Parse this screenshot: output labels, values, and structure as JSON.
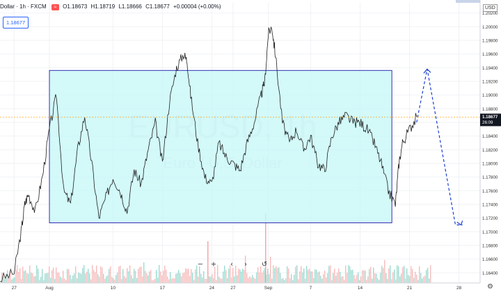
{
  "legend": {
    "symbol": "Dollar · 1h · FXCM",
    "o": "O1.18673",
    "h": "H1.18719",
    "l": "L1.18666",
    "c": "C1.18677",
    "chg": "+0.00004 (+0.00%)"
  },
  "price_badge": "1.18677",
  "currency": "USD",
  "watermark": {
    "title": "EURUSD, 1h",
    "subtitle": "Euro / U.S. Dollar"
  },
  "current_price_label": "1.18677",
  "countdown_label": "26:09",
  "nav": {
    "zoom_out": "−",
    "zoom_in": "+",
    "left": "‹",
    "right": "›",
    "reset": "↺"
  },
  "colors": {
    "rect_fill": "#c8f7f8",
    "rect_stroke": "#3030b0",
    "arrow": "#1a3fcf",
    "up_volume": "#7fcfc2",
    "down_volume": "#f4a7a7",
    "price_line": "#ff9900"
  },
  "chart_data": {
    "type": "line",
    "title": "",
    "xlabel": "",
    "ylabel": "",
    "ylim": [
      1.1625,
      1.2035
    ],
    "yticks": [
      "1.20200",
      "1.20000",
      "1.19800",
      "1.19600",
      "1.19400",
      "1.19200",
      "1.19000",
      "1.18800",
      "1.18600",
      "1.18400",
      "1.18200",
      "1.18000",
      "1.17800",
      "1.17600",
      "1.17400",
      "1.17200",
      "1.17000",
      "1.16800",
      "1.16600",
      "1.16400"
    ],
    "ytick_values": [
      1.202,
      1.2,
      1.198,
      1.196,
      1.194,
      1.192,
      1.19,
      1.188,
      1.186,
      1.184,
      1.182,
      1.18,
      1.178,
      1.176,
      1.174,
      1.172,
      1.17,
      1.168,
      1.166,
      1.164
    ],
    "xticks": [
      "27",
      "Aug",
      "10",
      "17",
      "24",
      "27",
      "Sep",
      "7",
      "14",
      "21",
      "28"
    ],
    "xtick_days": [
      -5,
      0,
      9,
      16,
      23,
      26,
      31,
      37,
      44,
      51,
      58
    ],
    "xlim_days": [
      -7,
      61
    ],
    "series": [
      {
        "x": [
          -7,
          -5,
          -4,
          -3.5,
          -3,
          -2,
          -1,
          0,
          1,
          2,
          3,
          4,
          5,
          6,
          7,
          8,
          9,
          10,
          11,
          12,
          13,
          14,
          15,
          16,
          17,
          18,
          19,
          19.5,
          20,
          21,
          22,
          23,
          24,
          25,
          26,
          27,
          28,
          29,
          30,
          30.5,
          31,
          31.5,
          32,
          33,
          34,
          35,
          36,
          37,
          38,
          39,
          40,
          41,
          42,
          43,
          44,
          45,
          46,
          47,
          48,
          49,
          49.5,
          50,
          51,
          52
        ],
        "y": [
          1.163,
          1.164,
          1.17,
          1.174,
          1.1755,
          1.173,
          1.178,
          1.185,
          1.19,
          1.176,
          1.174,
          1.182,
          1.187,
          1.18,
          1.172,
          1.175,
          1.178,
          1.176,
          1.173,
          1.179,
          1.177,
          1.182,
          1.186,
          1.18,
          1.189,
          1.194,
          1.196,
          1.195,
          1.19,
          1.183,
          1.178,
          1.177,
          1.183,
          1.181,
          1.18,
          1.179,
          1.183,
          1.186,
          1.19,
          1.192,
          1.199,
          1.2,
          1.196,
          1.186,
          1.183,
          1.185,
          1.182,
          1.184,
          1.18,
          1.179,
          1.184,
          1.186,
          1.187,
          1.186,
          1.186,
          1.185,
          1.183,
          1.18,
          1.176,
          1.174,
          1.18,
          1.183,
          1.185,
          1.1868
        ]
      }
    ],
    "rectangle": {
      "x_start": 0,
      "x_end": 48.5,
      "y_top": 1.1936,
      "y_bottom": 1.1713
    },
    "projection": {
      "x": [
        52,
        53.5,
        57.5,
        58.5
      ],
      "y": [
        1.186,
        1.1938,
        1.171,
        1.171
      ]
    },
    "current_price": 1.18677
  }
}
